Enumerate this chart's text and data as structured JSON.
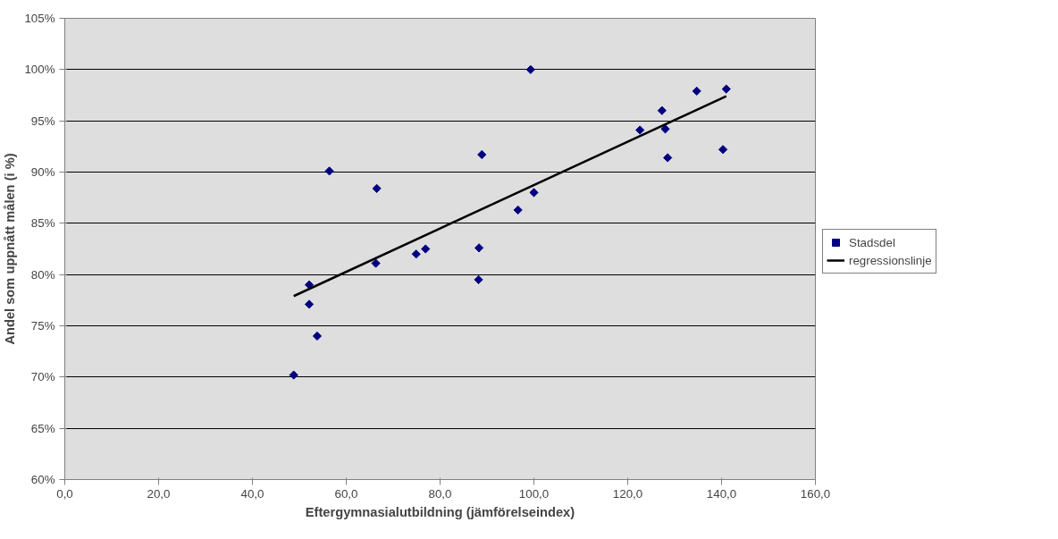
{
  "chart_data": {
    "type": "scatter",
    "xlabel": "Eftergymnasialutbildning (jämförelseindex)",
    "ylabel": "Andel som uppnått målen (i %)",
    "series": [
      {
        "name": "Stadsdel",
        "marker": "diamond",
        "color": "#000080",
        "x": [
          48.8,
          52.1,
          52.1,
          53.8,
          56.4,
          66.3,
          66.5,
          74.9,
          76.9,
          88.2,
          88.3,
          88.9,
          96.6,
          99.3,
          100.0,
          122.6,
          127.3,
          128.0,
          128.5,
          134.7,
          140.3,
          141.0
        ],
        "values": [
          70.2,
          79.0,
          77.1,
          74.0,
          90.1,
          81.1,
          88.4,
          82.0,
          82.5,
          79.5,
          82.6,
          91.7,
          86.3,
          100.0,
          88.0,
          94.1,
          96.0,
          94.2,
          91.4,
          97.9,
          92.2,
          98.1
        ]
      },
      {
        "name": "regressionslinje",
        "type": "line",
        "color": "#000000",
        "line_style": "solid",
        "x": [
          48.8,
          141.0
        ],
        "values": [
          77.9,
          97.4
        ]
      }
    ],
    "xlim": [
      0,
      160
    ],
    "ylim": [
      60,
      105
    ],
    "xticks": [
      {
        "value": 0,
        "label": "0,0"
      },
      {
        "value": 20,
        "label": "20,0"
      },
      {
        "value": 40,
        "label": "40,0"
      },
      {
        "value": 60,
        "label": "60,0"
      },
      {
        "value": 80,
        "label": "80,0"
      },
      {
        "value": 100,
        "label": "100,0"
      },
      {
        "value": 120,
        "label": "120,0"
      },
      {
        "value": 140,
        "label": "140,0"
      },
      {
        "value": 160,
        "label": "160,0"
      }
    ],
    "yticks": [
      {
        "value": 60,
        "label": "60%"
      },
      {
        "value": 65,
        "label": "65%"
      },
      {
        "value": 70,
        "label": "70%"
      },
      {
        "value": 75,
        "label": "75%"
      },
      {
        "value": 80,
        "label": "80%"
      },
      {
        "value": 85,
        "label": "85%"
      },
      {
        "value": 90,
        "label": "90%"
      },
      {
        "value": 95,
        "label": "95%"
      },
      {
        "value": 100,
        "label": "100%"
      },
      {
        "value": 105,
        "label": "105%"
      }
    ],
    "grid": "y",
    "legend": "right"
  }
}
